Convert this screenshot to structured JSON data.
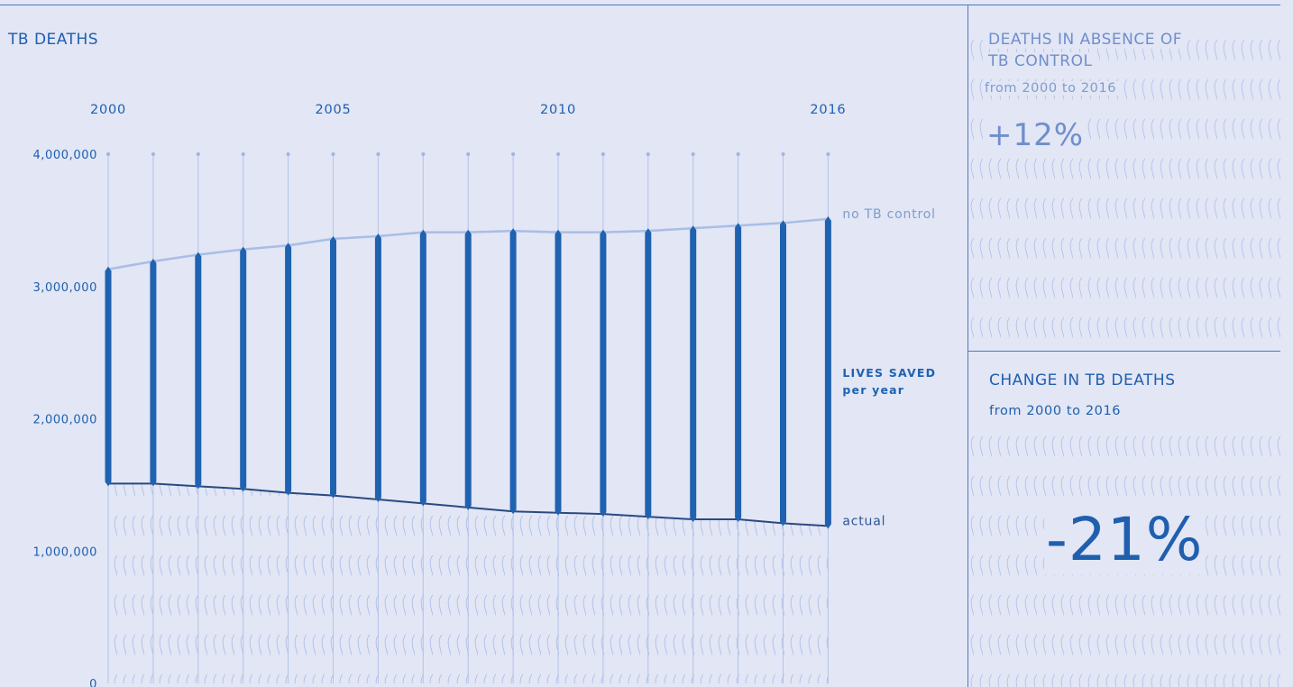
{
  "chart_title": "TB DEATHS",
  "panel_absence": {
    "title_line1": "DEATHS IN ABSENCE OF",
    "title_line2": "TB CONTROL",
    "subtitle": "from 2000 to 2016",
    "value": "+12%"
  },
  "panel_change": {
    "title": "CHANGE IN TB DEATHS",
    "subtitle": "from 2000 to 2016",
    "value": "-21%"
  },
  "colors": {
    "background": "#e2e6f5",
    "bar": "#1f62b0",
    "no_control_line": "#a9bde6",
    "actual_line": "#2a4a80",
    "text_primary": "#1f5fae",
    "text_muted": "#7f9ccd",
    "gridline": "#b5c4e6"
  },
  "chart_data": {
    "type": "line",
    "title": "TB DEATHS",
    "x": [
      2000,
      2001,
      2002,
      2003,
      2004,
      2005,
      2006,
      2007,
      2008,
      2009,
      2010,
      2011,
      2012,
      2013,
      2014,
      2015,
      2016
    ],
    "x_tick_labels": [
      "2000",
      "2005",
      "2010",
      "2016"
    ],
    "y_tick_labels": [
      "4,000,000",
      "3,000,000",
      "2,000,000",
      "1,000,000",
      "0"
    ],
    "ylim": [
      0,
      4000000
    ],
    "series": [
      {
        "name": "no TB control",
        "values": [
          3130000,
          3190000,
          3240000,
          3280000,
          3310000,
          3360000,
          3380000,
          3410000,
          3410000,
          3420000,
          3410000,
          3410000,
          3420000,
          3440000,
          3460000,
          3480000,
          3510000
        ]
      },
      {
        "name": "actual",
        "values": [
          1510000,
          1510000,
          1490000,
          1470000,
          1440000,
          1420000,
          1390000,
          1360000,
          1330000,
          1300000,
          1290000,
          1280000,
          1260000,
          1240000,
          1240000,
          1210000,
          1190000
        ]
      }
    ],
    "bar_label_line1": "LIVES SAVED",
    "bar_label_line2": "per year",
    "grid": "vertical"
  }
}
